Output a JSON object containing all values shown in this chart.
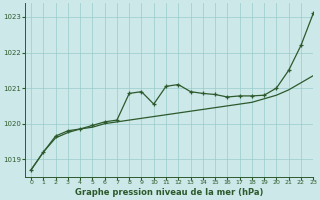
{
  "title": "Graphe pression niveau de la mer (hPa)",
  "background_color": "#cce8e8",
  "grid_color": "#99cccc",
  "line_color_dark": "#2d5a2d",
  "xlim": [
    -0.5,
    23
  ],
  "ylim": [
    1018.5,
    1023.4
  ],
  "yticks": [
    1019,
    1020,
    1021,
    1022,
    1023
  ],
  "xticks": [
    0,
    1,
    2,
    3,
    4,
    5,
    6,
    7,
    8,
    9,
    10,
    11,
    12,
    13,
    14,
    15,
    16,
    17,
    18,
    19,
    20,
    21,
    22,
    23
  ],
  "smooth_x": [
    0,
    1,
    2,
    3,
    4,
    5,
    6,
    7,
    8,
    9,
    10,
    11,
    12,
    13,
    14,
    15,
    16,
    17,
    18,
    19,
    20,
    21,
    22,
    23
  ],
  "smooth_y": [
    1018.7,
    1019.2,
    1019.6,
    1019.75,
    1019.85,
    1019.9,
    1020.0,
    1020.05,
    1020.1,
    1020.15,
    1020.2,
    1020.25,
    1020.3,
    1020.35,
    1020.4,
    1020.45,
    1020.5,
    1020.55,
    1020.6,
    1020.7,
    1020.8,
    1020.95,
    1021.15,
    1021.35
  ],
  "marker_x": [
    0,
    1,
    2,
    3,
    4,
    5,
    6,
    7,
    8,
    9,
    10,
    11,
    12,
    13,
    14,
    15,
    16,
    17,
    18,
    19,
    20,
    21,
    22,
    23
  ],
  "marker_y": [
    1018.7,
    1019.2,
    1019.65,
    1019.8,
    1019.85,
    1019.95,
    1020.05,
    1020.1,
    1020.85,
    1020.9,
    1020.55,
    1021.05,
    1021.1,
    1020.9,
    1020.85,
    1020.82,
    1020.75,
    1020.78,
    1020.78,
    1020.8,
    1021.0,
    1021.5,
    1022.2,
    1023.1
  ]
}
